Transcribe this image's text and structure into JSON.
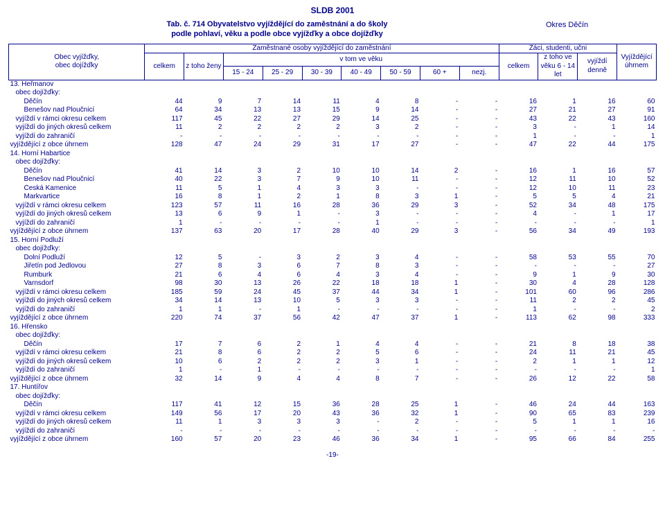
{
  "colors": {
    "text": "#00008b",
    "background": "#ffffff",
    "border": "#00008b"
  },
  "top_title": "SLDB 2001",
  "table_ref": "Tab. č. 714",
  "table_title_l1": "Obyvatelstvo vyjíždějící do zaměstnání a do školy",
  "table_title_l2": "podle pohlaví, věku a podle obce vyjížďky a obce dojížďky",
  "district": "Okres Děčín",
  "footer_page": "-19-",
  "header": {
    "col_label_l1": "Obec vyjížďky,",
    "col_label_l2": "obec dojížďky",
    "group_zam": "Zaměstnané osoby vyjíždějící do zaměstnání",
    "group_stud": "Žáci, studenti, učni",
    "celkem": "celkem",
    "z_toho_zeny": "z toho ženy",
    "v_tom_ve_veku": "v tom ve věku",
    "age_15_24": "15 - 24",
    "age_25_29": "25 - 29",
    "age_30_39": "30 - 39",
    "age_40_49": "40 - 49",
    "age_50_59": "50 - 59",
    "age_60p": "60 +",
    "nezj": "nezj.",
    "stud_celkem": "celkem",
    "stud_614_l1": "z toho ve",
    "stud_614_l2": "věku 6 - 14",
    "stud_614_l3": "let",
    "vyjizdi_l1": "vyjíždí",
    "vyjizdi_l2": "denně",
    "uhrnem_l1": "Vyjíždějící",
    "uhrnem_l2": "úhrnem"
  },
  "rows": [
    {
      "lbl": "13. Heřmanov",
      "cls": "section",
      "v": [
        "",
        "",
        "",
        "",
        "",
        "",
        "",
        "",
        "",
        "",
        "",
        "",
        ""
      ]
    },
    {
      "lbl": "obec dojížďky:",
      "cls": "indent1",
      "v": [
        "",
        "",
        "",
        "",
        "",
        "",
        "",
        "",
        "",
        "",
        "",
        "",
        ""
      ]
    },
    {
      "lbl": "Děčín",
      "cls": "indent2",
      "v": [
        "44",
        "9",
        "7",
        "14",
        "11",
        "4",
        "8",
        "-",
        "-",
        "16",
        "1",
        "16",
        "60"
      ]
    },
    {
      "lbl": "Benešov nad Ploučnicí",
      "cls": "indent2",
      "v": [
        "64",
        "34",
        "13",
        "13",
        "15",
        "9",
        "14",
        "-",
        "-",
        "27",
        "21",
        "27",
        "91"
      ]
    },
    {
      "lbl": "vyjíždí v rámci okresu celkem",
      "cls": "indent1",
      "v": [
        "117",
        "45",
        "22",
        "27",
        "29",
        "14",
        "25",
        "-",
        "-",
        "43",
        "22",
        "43",
        "160"
      ]
    },
    {
      "lbl": "vyjíždí do jiných okresů celkem",
      "cls": "indent1",
      "v": [
        "11",
        "2",
        "2",
        "2",
        "2",
        "3",
        "2",
        "-",
        "-",
        "3",
        "-",
        "1",
        "14"
      ]
    },
    {
      "lbl": "vyjíždí do zahraničí",
      "cls": "indent1",
      "v": [
        "-",
        "-",
        "-",
        "-",
        "-",
        "-",
        "-",
        "-",
        "-",
        "1",
        "-",
        "-",
        "1"
      ]
    },
    {
      "lbl": "vyjíždějící z obce úhrnem",
      "cls": "",
      "v": [
        "128",
        "47",
        "24",
        "29",
        "31",
        "17",
        "27",
        "-",
        "-",
        "47",
        "22",
        "44",
        "175"
      ]
    },
    {
      "lbl": "14. Horní Habartice",
      "cls": "section",
      "v": [
        "",
        "",
        "",
        "",
        "",
        "",
        "",
        "",
        "",
        "",
        "",
        "",
        ""
      ]
    },
    {
      "lbl": "obec dojížďky:",
      "cls": "indent1",
      "v": [
        "",
        "",
        "",
        "",
        "",
        "",
        "",
        "",
        "",
        "",
        "",
        "",
        ""
      ]
    },
    {
      "lbl": "Děčín",
      "cls": "indent2",
      "v": [
        "41",
        "14",
        "3",
        "2",
        "10",
        "10",
        "14",
        "2",
        "-",
        "16",
        "1",
        "16",
        "57"
      ]
    },
    {
      "lbl": "Benešov nad Ploučnicí",
      "cls": "indent2",
      "v": [
        "40",
        "22",
        "3",
        "7",
        "9",
        "10",
        "11",
        "-",
        "-",
        "12",
        "11",
        "10",
        "52"
      ]
    },
    {
      "lbl": "Česká Kamenice",
      "cls": "indent2",
      "v": [
        "11",
        "5",
        "1",
        "4",
        "3",
        "3",
        "-",
        "-",
        "-",
        "12",
        "10",
        "11",
        "23"
      ]
    },
    {
      "lbl": "Markvartice",
      "cls": "indent2",
      "v": [
        "16",
        "8",
        "1",
        "2",
        "1",
        "8",
        "3",
        "1",
        "-",
        "5",
        "5",
        "4",
        "21"
      ]
    },
    {
      "lbl": "vyjíždí v rámci okresu celkem",
      "cls": "indent1",
      "v": [
        "123",
        "57",
        "11",
        "16",
        "28",
        "36",
        "29",
        "3",
        "-",
        "52",
        "34",
        "48",
        "175"
      ]
    },
    {
      "lbl": "vyjíždí do jiných okresů celkem",
      "cls": "indent1",
      "v": [
        "13",
        "6",
        "9",
        "1",
        "-",
        "3",
        "-",
        "-",
        "-",
        "4",
        "-",
        "1",
        "17"
      ]
    },
    {
      "lbl": "vyjíždí do zahraničí",
      "cls": "indent1",
      "v": [
        "1",
        "-",
        "-",
        "-",
        "-",
        "1",
        "-",
        "-",
        "-",
        "-",
        "-",
        "-",
        "1"
      ]
    },
    {
      "lbl": "vyjíždějící z obce úhrnem",
      "cls": "",
      "v": [
        "137",
        "63",
        "20",
        "17",
        "28",
        "40",
        "29",
        "3",
        "-",
        "56",
        "34",
        "49",
        "193"
      ]
    },
    {
      "lbl": "15. Horní Podluží",
      "cls": "section",
      "v": [
        "",
        "",
        "",
        "",
        "",
        "",
        "",
        "",
        "",
        "",
        "",
        "",
        ""
      ]
    },
    {
      "lbl": "obec dojížďky:",
      "cls": "indent1",
      "v": [
        "",
        "",
        "",
        "",
        "",
        "",
        "",
        "",
        "",
        "",
        "",
        "",
        ""
      ]
    },
    {
      "lbl": "Dolní Podluží",
      "cls": "indent2",
      "v": [
        "12",
        "5",
        "-",
        "3",
        "2",
        "3",
        "4",
        "-",
        "-",
        "58",
        "53",
        "55",
        "70"
      ]
    },
    {
      "lbl": "Jiřetín pod Jedlovou",
      "cls": "indent2",
      "v": [
        "27",
        "8",
        "3",
        "6",
        "7",
        "8",
        "3",
        "-",
        "-",
        "-",
        "-",
        "-",
        "27"
      ]
    },
    {
      "lbl": "Rumburk",
      "cls": "indent2",
      "v": [
        "21",
        "6",
        "4",
        "6",
        "4",
        "3",
        "4",
        "-",
        "-",
        "9",
        "1",
        "9",
        "30"
      ]
    },
    {
      "lbl": "Varnsdorf",
      "cls": "indent2",
      "v": [
        "98",
        "30",
        "13",
        "26",
        "22",
        "18",
        "18",
        "1",
        "-",
        "30",
        "4",
        "28",
        "128"
      ]
    },
    {
      "lbl": "vyjíždí v rámci okresu celkem",
      "cls": "indent1",
      "v": [
        "185",
        "59",
        "24",
        "45",
        "37",
        "44",
        "34",
        "1",
        "-",
        "101",
        "60",
        "96",
        "286"
      ]
    },
    {
      "lbl": "vyjíždí do jiných okresů celkem",
      "cls": "indent1",
      "v": [
        "34",
        "14",
        "13",
        "10",
        "5",
        "3",
        "3",
        "-",
        "-",
        "11",
        "2",
        "2",
        "45"
      ]
    },
    {
      "lbl": "vyjíždí do zahraničí",
      "cls": "indent1",
      "v": [
        "1",
        "1",
        "-",
        "1",
        "-",
        "-",
        "-",
        "-",
        "-",
        "1",
        "-",
        "-",
        "2"
      ]
    },
    {
      "lbl": "vyjíždějící z obce úhrnem",
      "cls": "",
      "v": [
        "220",
        "74",
        "37",
        "56",
        "42",
        "47",
        "37",
        "1",
        "-",
        "113",
        "62",
        "98",
        "333"
      ]
    },
    {
      "lbl": "16. Hřensko",
      "cls": "section",
      "v": [
        "",
        "",
        "",
        "",
        "",
        "",
        "",
        "",
        "",
        "",
        "",
        "",
        ""
      ]
    },
    {
      "lbl": "obec dojížďky:",
      "cls": "indent1",
      "v": [
        "",
        "",
        "",
        "",
        "",
        "",
        "",
        "",
        "",
        "",
        "",
        "",
        ""
      ]
    },
    {
      "lbl": "Děčín",
      "cls": "indent2",
      "v": [
        "17",
        "7",
        "6",
        "2",
        "1",
        "4",
        "4",
        "-",
        "-",
        "21",
        "8",
        "18",
        "38"
      ]
    },
    {
      "lbl": "vyjíždí v rámci okresu celkem",
      "cls": "indent1",
      "v": [
        "21",
        "8",
        "6",
        "2",
        "2",
        "5",
        "6",
        "-",
        "-",
        "24",
        "11",
        "21",
        "45"
      ]
    },
    {
      "lbl": "vyjíždí do jiných okresů celkem",
      "cls": "indent1",
      "v": [
        "10",
        "6",
        "2",
        "2",
        "2",
        "3",
        "1",
        "-",
        "-",
        "2",
        "1",
        "1",
        "12"
      ]
    },
    {
      "lbl": "vyjíždí do zahraničí",
      "cls": "indent1",
      "v": [
        "1",
        "-",
        "1",
        "-",
        "-",
        "-",
        "-",
        "-",
        "-",
        "-",
        "-",
        "-",
        "1"
      ]
    },
    {
      "lbl": "vyjíždějící z obce úhrnem",
      "cls": "",
      "v": [
        "32",
        "14",
        "9",
        "4",
        "4",
        "8",
        "7",
        "-",
        "-",
        "26",
        "12",
        "22",
        "58"
      ]
    },
    {
      "lbl": "17. Huntířov",
      "cls": "section",
      "v": [
        "",
        "",
        "",
        "",
        "",
        "",
        "",
        "",
        "",
        "",
        "",
        "",
        ""
      ]
    },
    {
      "lbl": "obec dojížďky:",
      "cls": "indent1",
      "v": [
        "",
        "",
        "",
        "",
        "",
        "",
        "",
        "",
        "",
        "",
        "",
        "",
        ""
      ]
    },
    {
      "lbl": "Děčín",
      "cls": "indent2",
      "v": [
        "117",
        "41",
        "12",
        "15",
        "36",
        "28",
        "25",
        "1",
        "-",
        "46",
        "24",
        "44",
        "163"
      ]
    },
    {
      "lbl": "vyjíždí v rámci okresu celkem",
      "cls": "indent1",
      "v": [
        "149",
        "56",
        "17",
        "20",
        "43",
        "36",
        "32",
        "1",
        "-",
        "90",
        "65",
        "83",
        "239"
      ]
    },
    {
      "lbl": "vyjíždí do jiných okresů celkem",
      "cls": "indent1",
      "v": [
        "11",
        "1",
        "3",
        "3",
        "3",
        "-",
        "2",
        "-",
        "-",
        "5",
        "1",
        "1",
        "16"
      ]
    },
    {
      "lbl": "vyjíždí do zahraničí",
      "cls": "indent1",
      "v": [
        "-",
        "-",
        "-",
        "-",
        "-",
        "-",
        "-",
        "-",
        "-",
        "-",
        "-",
        "-",
        "-"
      ]
    },
    {
      "lbl": "vyjíždějící z obce úhrnem",
      "cls": "",
      "v": [
        "160",
        "57",
        "20",
        "23",
        "46",
        "36",
        "34",
        "1",
        "-",
        "95",
        "66",
        "84",
        "255"
      ]
    }
  ]
}
